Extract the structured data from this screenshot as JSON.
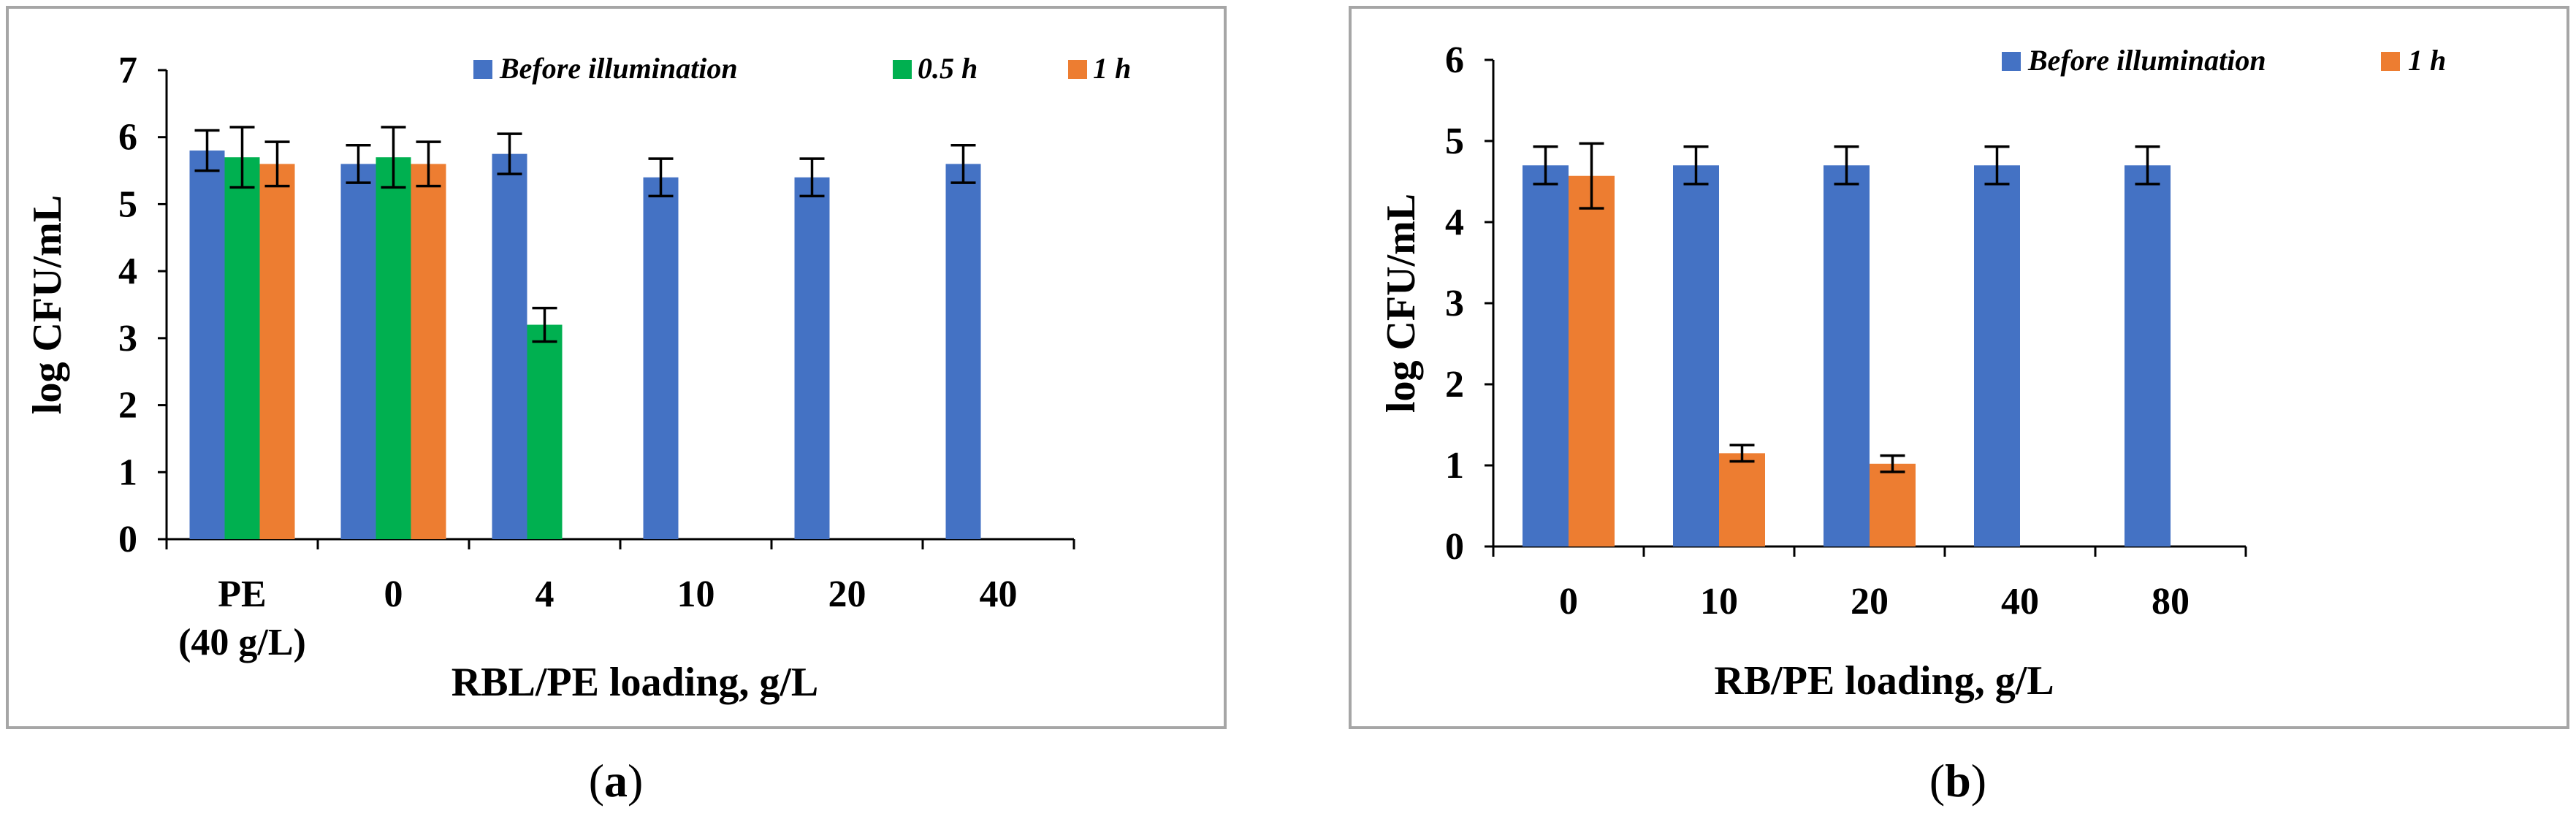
{
  "colors": {
    "before": "#4472C4",
    "half_hour": "#00B050",
    "one_hour": "#ED7D31",
    "frame": "#A6A6A6",
    "axis": "#000000"
  },
  "chart_data": [
    {
      "type": "bar",
      "panel_label": "a",
      "categories": [
        "PE",
        "0",
        "4",
        "10",
        "20",
        "40"
      ],
      "category_sublabels": [
        "(40 g/L)",
        "",
        "",
        "",
        "",
        ""
      ],
      "xlabel": "RBL/PE  loading, g/L",
      "ylabel": "log CFU/mL",
      "ylim": [
        0,
        7
      ],
      "yticks": [
        "0",
        "1",
        "2",
        "3",
        "4",
        "5",
        "6",
        "7"
      ],
      "legend_position": "top-right",
      "series": [
        {
          "name": "Before illumination",
          "color_key": "before",
          "values": [
            5.8,
            5.6,
            5.75,
            5.4,
            5.4,
            5.6
          ],
          "errors": [
            0.3,
            0.28,
            0.3,
            0.28,
            0.28,
            0.28
          ]
        },
        {
          "name": "0.5 h",
          "color_key": "half_hour",
          "values": [
            5.7,
            5.7,
            3.2,
            null,
            null,
            null
          ],
          "errors": [
            0.45,
            0.45,
            0.25,
            null,
            null,
            null
          ]
        },
        {
          "name": "1 h",
          "color_key": "one_hour",
          "values": [
            5.6,
            5.6,
            null,
            null,
            null,
            null
          ],
          "errors": [
            0.33,
            0.33,
            null,
            null,
            null,
            null
          ]
        }
      ]
    },
    {
      "type": "bar",
      "panel_label": "b",
      "categories": [
        "0",
        "10",
        "20",
        "40",
        "80"
      ],
      "category_sublabels": [
        "",
        "",
        "",
        "",
        ""
      ],
      "xlabel": "RB/PE  loading, g/L",
      "ylabel": "log CFU/mL",
      "ylim": [
        0,
        6
      ],
      "yticks": [
        "0",
        "1",
        "2",
        "3",
        "4",
        "5",
        "6"
      ],
      "legend_position": "top-right",
      "series": [
        {
          "name": "Before illumination",
          "color_key": "before",
          "values": [
            4.7,
            4.7,
            4.7,
            4.7,
            4.7
          ],
          "errors": [
            0.23,
            0.23,
            0.23,
            0.23,
            0.23
          ]
        },
        {
          "name": "1 h",
          "color_key": "one_hour",
          "values": [
            4.57,
            1.15,
            1.02,
            null,
            null
          ],
          "errors": [
            0.4,
            0.1,
            0.1,
            null,
            null
          ]
        }
      ]
    }
  ]
}
